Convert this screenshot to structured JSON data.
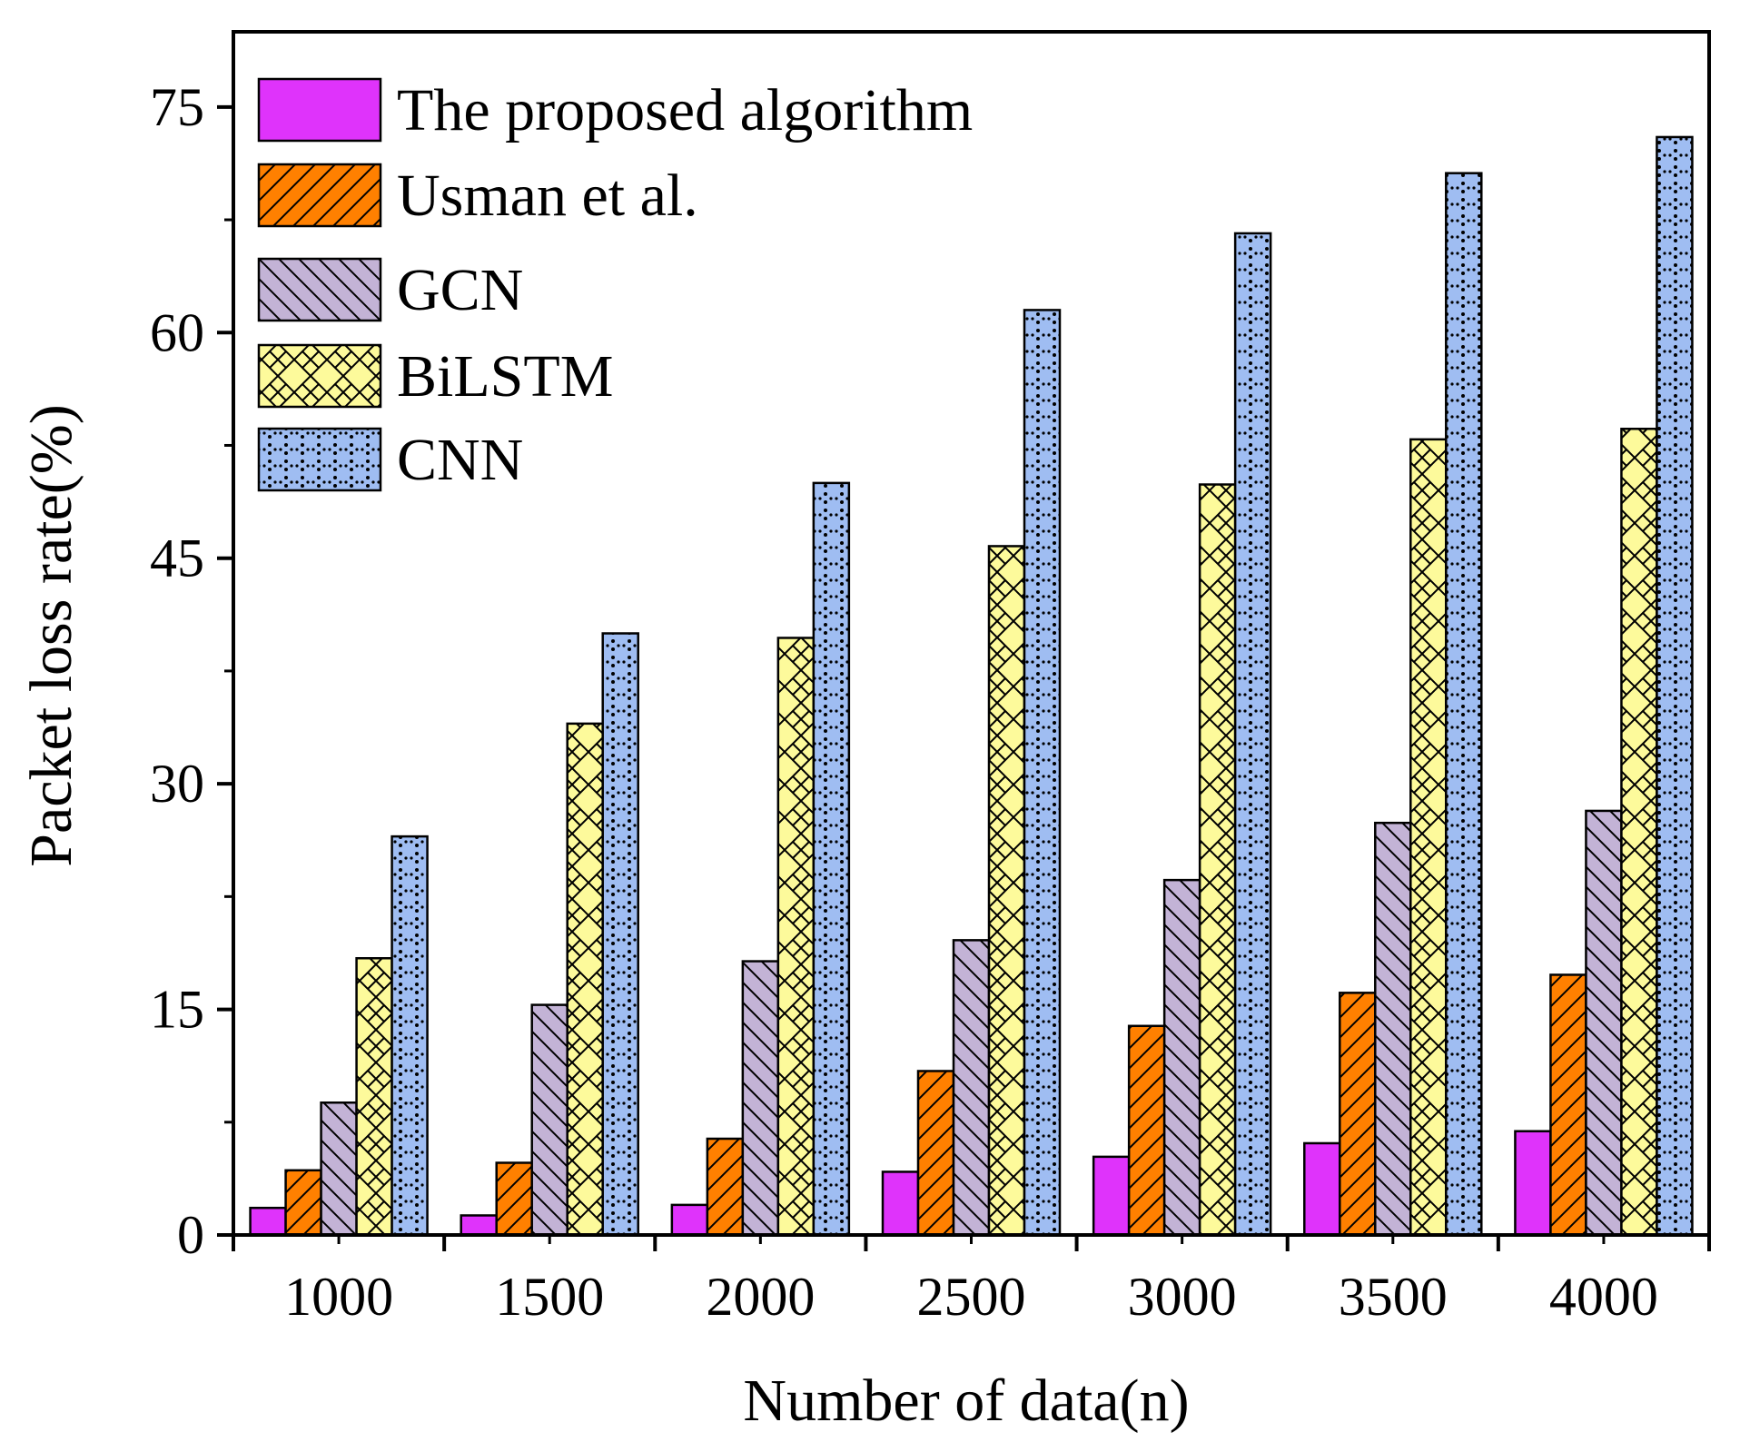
{
  "chart_data": {
    "type": "bar",
    "title": "",
    "xlabel": "Number of data(n)",
    "ylabel": "Packet loss rate(%)",
    "ylim": [
      0,
      80
    ],
    "yticks": [
      0,
      15,
      30,
      45,
      60,
      75
    ],
    "categories": [
      "1000",
      "1500",
      "2000",
      "2500",
      "3000",
      "3500",
      "4000"
    ],
    "legend_position": "top-left",
    "series": [
      {
        "name": "The proposed algorithm",
        "color": "#df33fb",
        "pattern": "solid",
        "values": [
          1.8,
          1.3,
          2.0,
          4.2,
          5.2,
          6.1,
          6.9
        ]
      },
      {
        "name": "Usman et al.",
        "color": "#ff8000",
        "pattern": "diagonal-up",
        "values": [
          4.3,
          4.8,
          6.4,
          10.9,
          13.9,
          16.1,
          17.3
        ]
      },
      {
        "name": "GCN",
        "color": "#c3b3d6",
        "pattern": "diagonal-down",
        "values": [
          8.8,
          15.3,
          18.2,
          19.6,
          23.6,
          27.4,
          28.2
        ]
      },
      {
        "name": "BiLSTM",
        "color": "#fdfa9b",
        "pattern": "zigzag",
        "values": [
          18.4,
          34.0,
          39.7,
          45.8,
          49.9,
          52.9,
          53.6
        ]
      },
      {
        "name": "CNN",
        "color": "#9fbdf2",
        "pattern": "dotted",
        "values": [
          26.5,
          40.0,
          50.0,
          61.5,
          66.6,
          70.6,
          73.0
        ]
      }
    ]
  }
}
